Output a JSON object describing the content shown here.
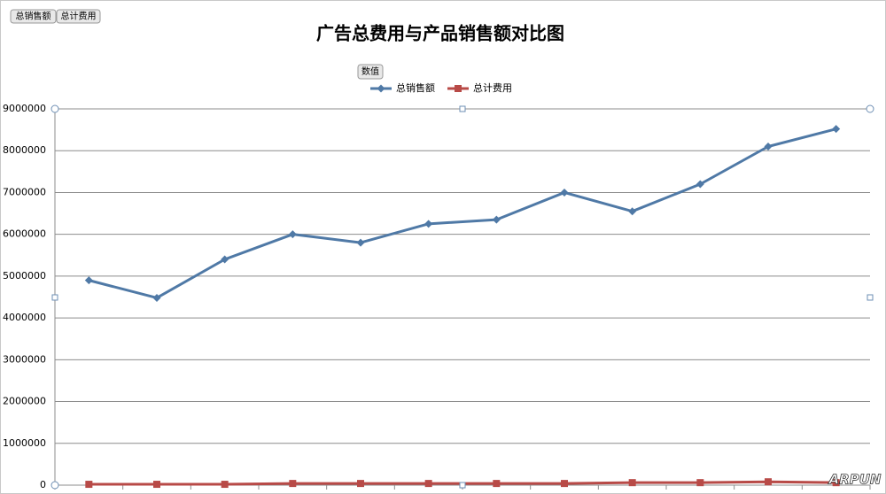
{
  "chart_data": {
    "type": "line",
    "title": "广告总费用与产品销售额对比图",
    "field_buttons": [
      "总销售额",
      "总计费用"
    ],
    "values_button": "数值",
    "watermark": "ARPUN",
    "categories": [
      null,
      null,
      null,
      null,
      null,
      null,
      null,
      null,
      null,
      null,
      null,
      null
    ],
    "series": [
      {
        "name": "总销售额",
        "color": "#4f79a6",
        "marker": "diamond",
        "values": [
          4900000,
          4480000,
          5400000,
          6000000,
          5800000,
          6250000,
          6350000,
          7000000,
          6550000,
          7200000,
          8100000,
          8520000
        ]
      },
      {
        "name": "总计费用",
        "color": "#b84a47",
        "marker": "square",
        "values": [
          20000,
          20000,
          20000,
          40000,
          40000,
          40000,
          40000,
          40000,
          60000,
          60000,
          80000,
          60000
        ]
      }
    ],
    "ylim": [
      0,
      9000000
    ],
    "yticks": [
      0,
      1000000,
      2000000,
      3000000,
      4000000,
      5000000,
      6000000,
      7000000,
      8000000,
      9000000
    ],
    "grid": true
  }
}
